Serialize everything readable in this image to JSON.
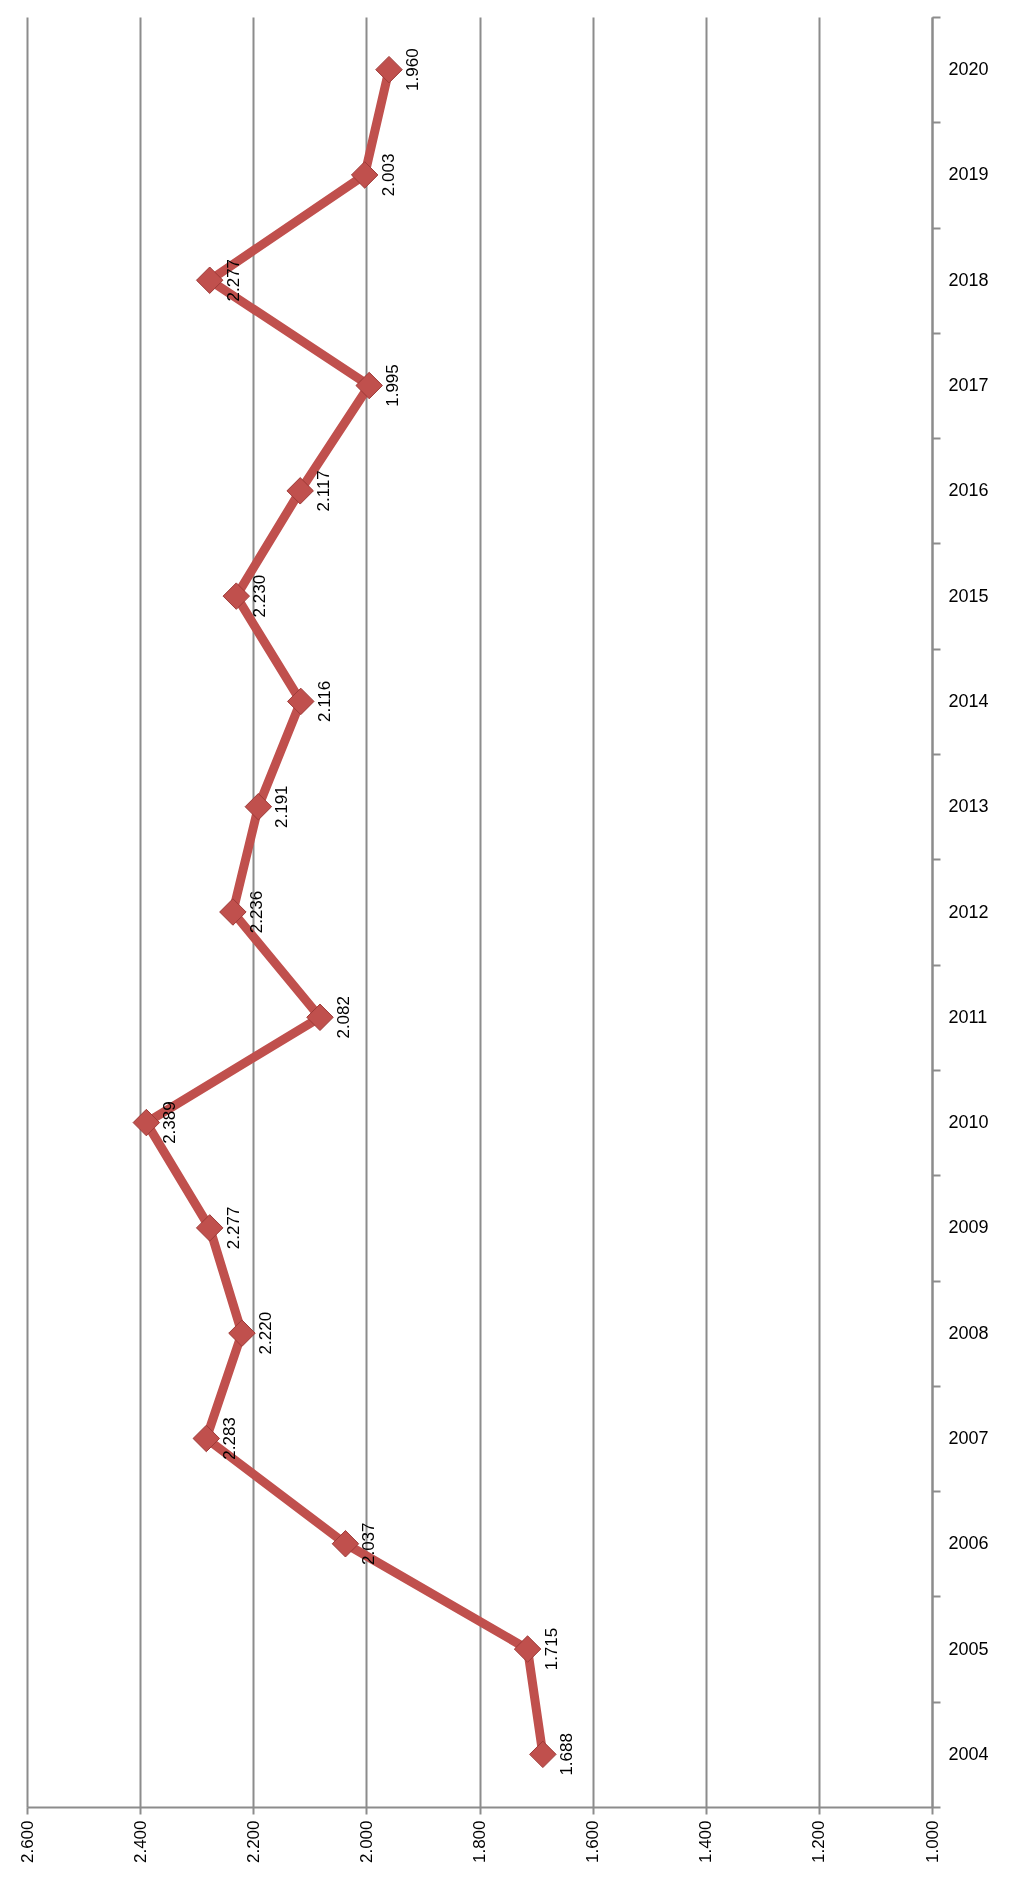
{
  "chart_data": {
    "type": "line",
    "orientation": "horizontal",
    "categories": [
      "2020",
      "2019",
      "2018",
      "2017",
      "2016",
      "2015",
      "2014",
      "2013",
      "2012",
      "2011",
      "2010",
      "2009",
      "2008",
      "2007",
      "2006",
      "2005",
      "2004"
    ],
    "series": [
      {
        "color": "#c0504d",
        "values": [
          1960,
          2003,
          2277,
          1995,
          2117,
          2230,
          2116,
          2191,
          2236,
          2082,
          2389,
          2277,
          2220,
          2283,
          2037,
          1715,
          1688
        ],
        "value_labels": [
          "1.960",
          "2.003",
          "2.277",
          "1.995",
          "2.117",
          "2.230",
          "2.116",
          "2.191",
          "2.236",
          "2.082",
          "2.389",
          "2.277",
          "2.220",
          "2.283",
          "2.037",
          "1.715",
          "1.688"
        ]
      }
    ],
    "xlim": [
      2600,
      1000
    ],
    "xticks": [
      {
        "value": 2600,
        "label": "2.600"
      },
      {
        "value": 2400,
        "label": "2.400"
      },
      {
        "value": 2200,
        "label": "2.200"
      },
      {
        "value": 2000,
        "label": "2.000"
      },
      {
        "value": 1800,
        "label": "1.800"
      },
      {
        "value": 1600,
        "label": "1.600"
      },
      {
        "value": 1400,
        "label": "1.400"
      },
      {
        "value": 1200,
        "label": "1.200"
      },
      {
        "value": 1000,
        "label": "1.000"
      }
    ],
    "grid": "x",
    "marker": "diamond",
    "line_style": "solid",
    "legend": false
  }
}
